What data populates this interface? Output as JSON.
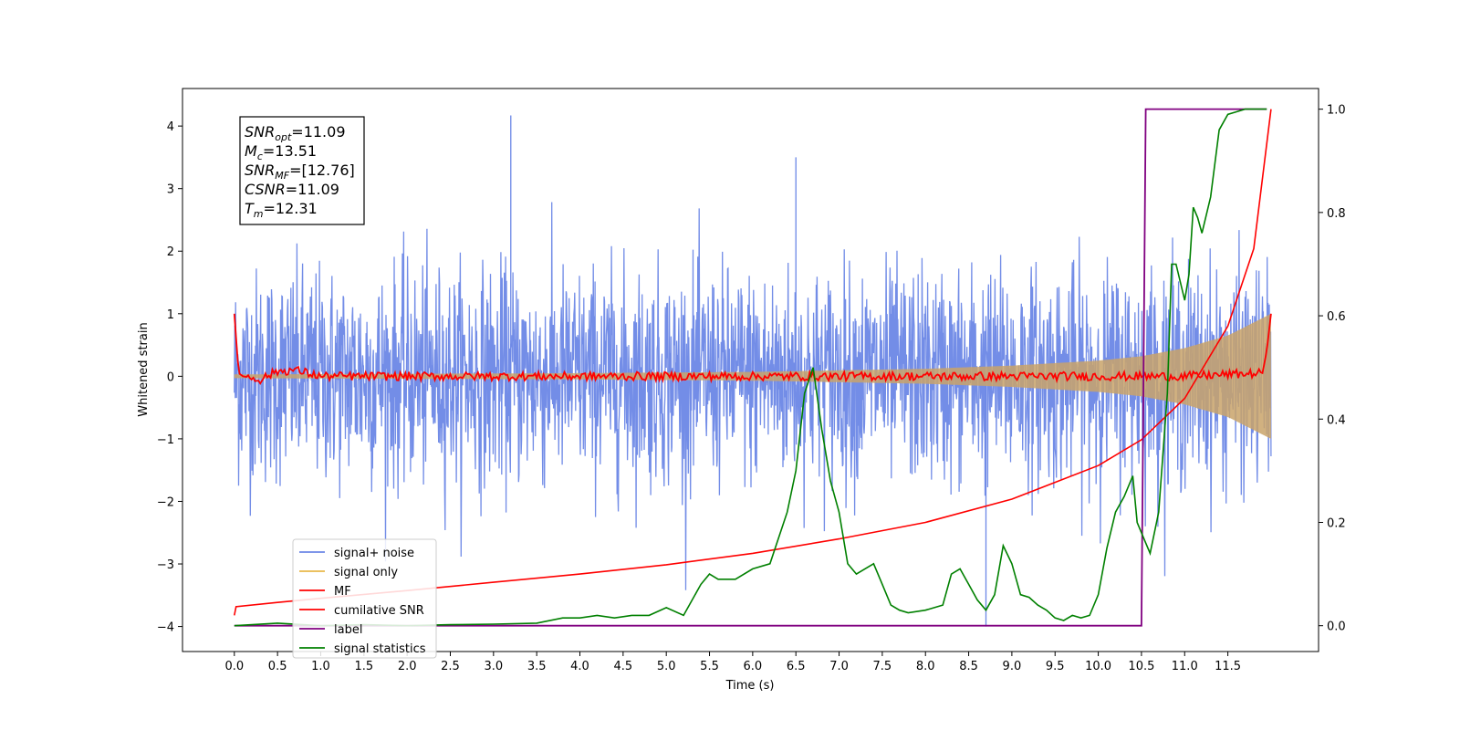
{
  "chart_data": {
    "type": "line",
    "xlabel": "Time (s)",
    "ylabel": "Whitened strain",
    "xlim": [
      -0.6,
      12.55
    ],
    "ylim": [
      -4.4,
      4.6
    ],
    "y2lim": [
      -0.05,
      1.04
    ],
    "xticks": [
      "0.0",
      "0.5",
      "1.0",
      "1.5",
      "2.0",
      "2.5",
      "3.0",
      "3.5",
      "4.0",
      "4.5",
      "5.0",
      "5.5",
      "6.0",
      "6.5",
      "7.0",
      "7.5",
      "8.0",
      "8.5",
      "9.0",
      "9.5",
      "10.0",
      "10.5",
      "11.0",
      "11.5"
    ],
    "yticks": [
      "−4",
      "−3",
      "−2",
      "−1",
      "0",
      "1",
      "2",
      "3",
      "4"
    ],
    "y2ticks": [
      "0.0",
      "0.2",
      "0.4",
      "0.6",
      "0.8",
      "1.0"
    ],
    "grid": false,
    "legend_position": "lower-left",
    "colors": {
      "signal_noise": "#6b87e6",
      "signal_only": "#e8b84a",
      "mf": "#ff0000",
      "cumulative_snr": "#ff0000",
      "label": "#800080",
      "signal_statistics": "#008000"
    },
    "series": [
      {
        "name": "signal+ noise",
        "axis": "left",
        "kind": "noise",
        "description_values": {
          "x_start": 0.0,
          "x_end": 12.0,
          "typical_range": [
            -2.3,
            2.5
          ],
          "max": 4.17
        }
      },
      {
        "name": "signal only",
        "axis": "left",
        "kind": "chirp",
        "envelope": {
          "x": [
            0.0,
            2.0,
            4.0,
            6.0,
            8.0,
            9.0,
            10.0,
            10.5,
            11.0,
            11.5,
            12.0
          ],
          "amplitude": [
            0.03,
            0.04,
            0.05,
            0.07,
            0.12,
            0.17,
            0.25,
            0.32,
            0.45,
            0.65,
            1.0
          ]
        }
      },
      {
        "name": "MF",
        "axis": "left",
        "kind": "line",
        "x": [
          0.0,
          0.05,
          0.1,
          0.3,
          0.5,
          0.7,
          1.0,
          2.0,
          4.0,
          6.0,
          8.0,
          10.0,
          11.0,
          11.9,
          11.95,
          12.0
        ],
        "y": [
          1.0,
          0.05,
          0.0,
          -0.05,
          0.08,
          0.1,
          0.0,
          0.0,
          0.0,
          0.0,
          0.0,
          0.0,
          0.0,
          0.05,
          0.4,
          1.0
        ]
      },
      {
        "name": "cumilative SNR",
        "axis": "right",
        "kind": "line",
        "x": [
          0.0,
          0.02,
          0.5,
          1.0,
          2.0,
          3.0,
          4.0,
          5.0,
          6.0,
          7.0,
          8.0,
          9.0,
          10.0,
          10.5,
          11.0,
          11.5,
          11.8,
          12.0
        ],
        "y": [
          0.02,
          0.037,
          0.045,
          0.053,
          0.068,
          0.084,
          0.1,
          0.118,
          0.14,
          0.168,
          0.2,
          0.245,
          0.31,
          0.36,
          0.44,
          0.58,
          0.73,
          1.0
        ]
      },
      {
        "name": "label",
        "axis": "right",
        "kind": "step",
        "x": [
          0.0,
          10.5,
          10.55,
          11.95
        ],
        "y": [
          0.0,
          0.0,
          1.0,
          1.0
        ]
      },
      {
        "name": "signal statistics",
        "axis": "right",
        "kind": "line",
        "x": [
          0.0,
          0.5,
          1.0,
          1.5,
          2.0,
          2.5,
          3.0,
          3.5,
          3.8,
          4.0,
          4.2,
          4.4,
          4.6,
          4.8,
          5.0,
          5.2,
          5.4,
          5.5,
          5.6,
          5.8,
          6.0,
          6.2,
          6.4,
          6.5,
          6.6,
          6.7,
          6.8,
          6.9,
          7.0,
          7.1,
          7.2,
          7.3,
          7.4,
          7.5,
          7.6,
          7.7,
          7.8,
          8.0,
          8.2,
          8.3,
          8.4,
          8.5,
          8.6,
          8.7,
          8.8,
          8.9,
          9.0,
          9.1,
          9.2,
          9.3,
          9.4,
          9.5,
          9.6,
          9.7,
          9.8,
          9.9,
          10.0,
          10.1,
          10.2,
          10.3,
          10.4,
          10.45,
          10.5,
          10.55,
          10.6,
          10.7,
          10.8,
          10.85,
          10.9,
          11.0,
          11.05,
          11.1,
          11.15,
          11.2,
          11.3,
          11.4,
          11.5,
          11.6,
          11.7,
          11.8,
          11.9,
          11.95
        ],
        "y": [
          0.0,
          0.005,
          0.0,
          0.002,
          0.0,
          0.002,
          0.003,
          0.005,
          0.015,
          0.015,
          0.02,
          0.015,
          0.02,
          0.02,
          0.035,
          0.02,
          0.08,
          0.1,
          0.09,
          0.09,
          0.11,
          0.12,
          0.22,
          0.3,
          0.45,
          0.5,
          0.38,
          0.28,
          0.22,
          0.12,
          0.1,
          0.11,
          0.12,
          0.08,
          0.04,
          0.03,
          0.025,
          0.03,
          0.04,
          0.1,
          0.11,
          0.08,
          0.05,
          0.03,
          0.06,
          0.155,
          0.12,
          0.06,
          0.055,
          0.04,
          0.03,
          0.015,
          0.01,
          0.02,
          0.015,
          0.02,
          0.06,
          0.15,
          0.22,
          0.25,
          0.29,
          0.2,
          0.18,
          0.16,
          0.14,
          0.22,
          0.45,
          0.7,
          0.7,
          0.63,
          0.68,
          0.81,
          0.79,
          0.76,
          0.83,
          0.96,
          0.99,
          0.995,
          1.0,
          1.0,
          1.0,
          1.0
        ]
      }
    ],
    "annotation": [
      {
        "base": "SNR",
        "sub": "opt",
        "value": "=11.09"
      },
      {
        "base": "M",
        "sub": "c",
        "value": "=13.51"
      },
      {
        "base": "SNR",
        "sub": "MF",
        "value": "=[12.76]"
      },
      {
        "base": "CSNR",
        "sub": "",
        "value": "=11.09"
      },
      {
        "base": "T",
        "sub": "m",
        "value": "=12.31"
      }
    ],
    "legend": [
      "signal+ noise",
      "signal only",
      "MF",
      "cumilative SNR",
      "label",
      "signal statistics"
    ]
  }
}
